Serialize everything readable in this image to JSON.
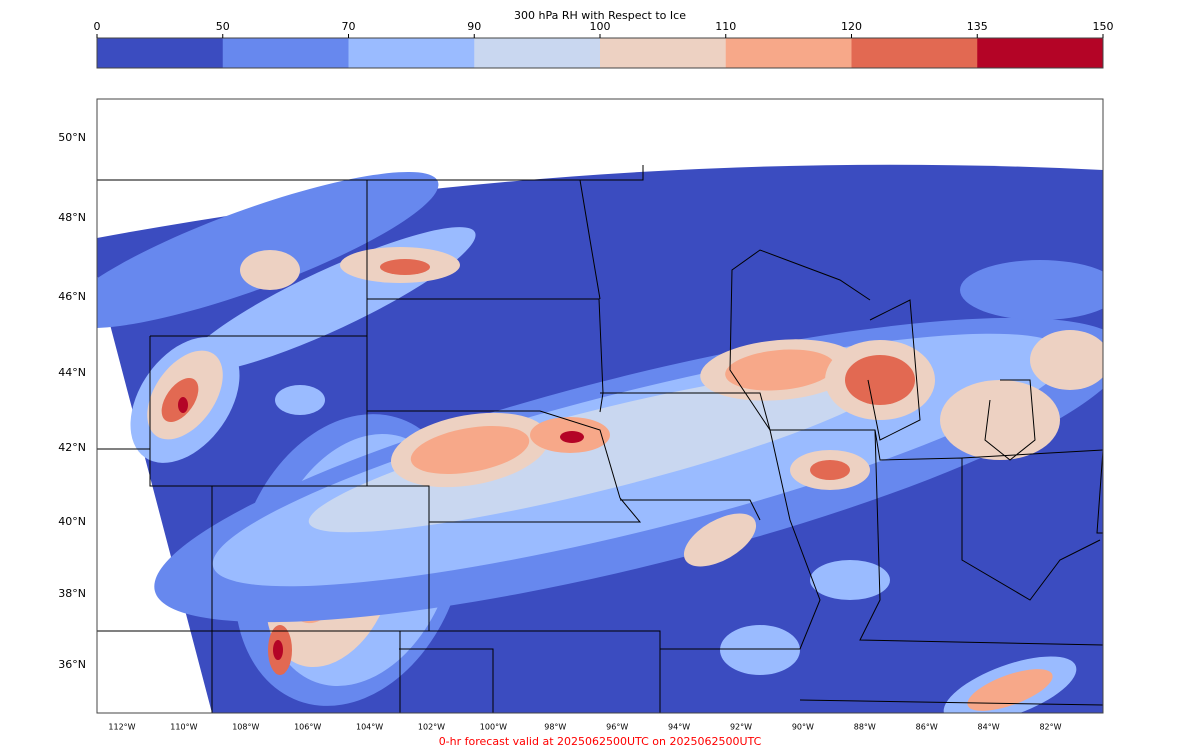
{
  "title": "300 hPa RH with Respect to Ice",
  "colorbar": {
    "boundaries": [
      0,
      50,
      70,
      90,
      100,
      110,
      120,
      135,
      150
    ],
    "colors": [
      "#3b4cc0",
      "#6788ee",
      "#9abbff",
      "#c9d7f0",
      "#edd1c2",
      "#f7a889",
      "#e26952",
      "#b40426"
    ]
  },
  "map": {
    "lat_labels": [
      "50°N",
      "48°N",
      "46°N",
      "44°N",
      "42°N",
      "40°N",
      "38°N",
      "36°N"
    ],
    "lon_labels": [
      "112°W",
      "110°W",
      "108°W",
      "106°W",
      "104°W",
      "102°W",
      "100°W",
      "98°W",
      "96°W",
      "94°W",
      "92°W",
      "90°W",
      "88°W",
      "86°W",
      "84°W",
      "82°W"
    ]
  },
  "footer": "0-hr forecast valid at 2025062500UTC on 2025062500UTC"
}
